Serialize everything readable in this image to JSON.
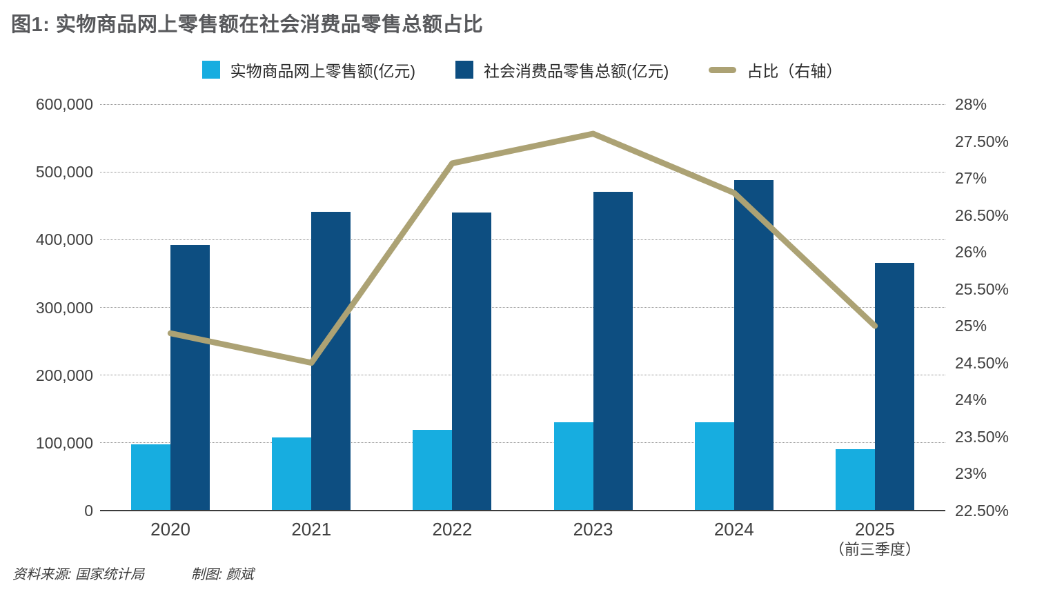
{
  "title": "图1: 实物商品网上零售额在社会消费品零售总额占比",
  "legend": [
    {
      "label": "实物商品网上零售额(亿元)",
      "color": "#17ade0",
      "swatch": "square"
    },
    {
      "label": "社会消费品零售总额(亿元)",
      "color": "#0d4e81",
      "swatch": "square"
    },
    {
      "label": "占比（右轴）",
      "color": "#aca274",
      "swatch": "line"
    }
  ],
  "footer": {
    "source": "资料来源: 国家统计局",
    "credit": "制图: 颜斌"
  },
  "chart_data": {
    "type": "bar+line combo",
    "title": "图1: 实物商品网上零售额在社会消费品零售总额占比",
    "categories": [
      "2020",
      "2021",
      "2022",
      "2023",
      "2024",
      "2025"
    ],
    "category_sublabels": [
      "",
      "",
      "",
      "",
      "",
      "（前三季度）"
    ],
    "series": [
      {
        "name": "实物商品网上零售额(亿元)",
        "type": "bar",
        "axis": "left",
        "color": "#17ade0",
        "values": [
          98000,
          108000,
          119000,
          130000,
          130000,
          91000
        ]
      },
      {
        "name": "社会消费品零售总额(亿元)",
        "type": "bar",
        "axis": "left",
        "color": "#0d4e81",
        "values": [
          392000,
          441000,
          440000,
          471000,
          488000,
          366000
        ]
      },
      {
        "name": "占比（右轴）",
        "type": "line",
        "axis": "right",
        "color": "#aca274",
        "values": [
          24.9,
          24.5,
          27.2,
          27.6,
          26.8,
          25.0
        ]
      }
    ],
    "left_axis": {
      "min": 0,
      "max": 600000,
      "step": 100000,
      "tick_labels": [
        "600,000",
        "500,000",
        "400,000",
        "300,000",
        "200,000",
        "100,000",
        "0"
      ]
    },
    "right_axis": {
      "min": 22.5,
      "max": 28,
      "step": 0.5,
      "tick_labels": [
        "28%",
        "27.50%",
        "27%",
        "26.50%",
        "26%",
        "25.50%",
        "25%",
        "24.50%",
        "24%",
        "23.50%",
        "23%",
        "22.50%"
      ]
    },
    "grid": "horizontal dotted",
    "legend_position": "top center"
  }
}
